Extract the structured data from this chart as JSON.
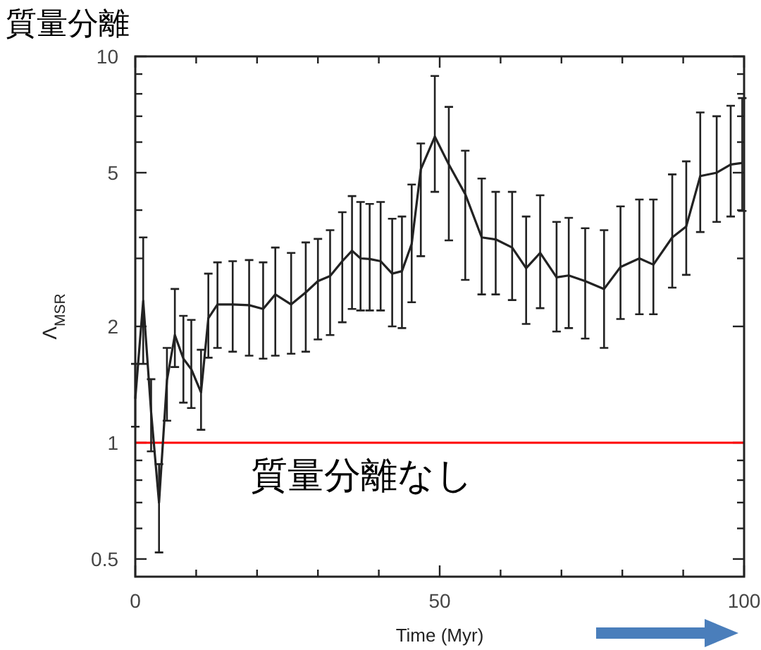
{
  "chart_data": {
    "type": "line",
    "title": "質量分離",
    "xlabel": "Time (Myr)",
    "ylabel": "Λ$_{MSR}$",
    "log": "y",
    "xlim": [
      0,
      100
    ],
    "xticks": [
      0,
      {
        "value": 10,
        "label": null
      },
      {
        "value": 20,
        "label": null
      },
      {
        "value": 30,
        "label": null
      },
      {
        "value": 40,
        "label": null
      },
      50,
      {
        "value": 60,
        "label": null
      },
      {
        "value": 70,
        "label": null
      },
      {
        "value": 80,
        "label": null
      },
      {
        "value": 90,
        "label": null
      },
      100
    ],
    "ylim": [
      0.45,
      10
    ],
    "yticks": [
      0.5,
      {
        "value": 0.6,
        "label": null
      },
      {
        "value": 0.7,
        "label": null
      },
      {
        "value": 0.8,
        "label": null
      },
      {
        "value": 0.9,
        "label": null
      },
      1,
      2,
      {
        "value": 3,
        "label": null
      },
      {
        "value": 4,
        "label": null
      },
      5,
      {
        "value": 6,
        "label": null
      },
      {
        "value": 7,
        "label": null
      },
      {
        "value": 8,
        "label": null
      },
      {
        "value": 9,
        "label": null
      },
      10
    ],
    "grid": false,
    "marker": "none",
    "line_style": "solid",
    "ref_lines": [
      {
        "axis": "y",
        "value": 1,
        "label": "質量分離なし",
        "color": "#ff0000"
      }
    ],
    "series": [
      {
        "color": "#222222",
        "x": [
          0,
          1.3,
          2.6,
          3.9,
          5.2,
          6.5,
          7.9,
          9.2,
          10.8,
          12,
          13.5,
          16,
          18.7,
          21,
          23,
          25.6,
          28,
          30,
          32,
          34,
          35.6,
          37,
          38.5,
          40.3,
          42.2,
          43.8,
          45.4,
          46.9,
          49.2,
          51.5,
          54.2,
          56.9,
          59.2,
          61.9,
          64.2,
          66.5,
          69.2,
          71.2,
          73.9,
          77,
          79.7,
          82.8,
          85.1,
          88.2,
          90.5,
          92.8,
          95.5,
          97.8,
          99.7
        ],
        "values": [
          1.3,
          2.33,
          1.2,
          0.7,
          1.45,
          1.9,
          1.65,
          1.55,
          1.35,
          2.1,
          2.28,
          2.28,
          2.27,
          2.22,
          2.42,
          2.28,
          2.45,
          2.62,
          2.7,
          2.95,
          3.14,
          3.0,
          2.99,
          2.95,
          2.74,
          2.78,
          3.27,
          5.1,
          6.2,
          5.25,
          4.4,
          3.4,
          3.36,
          3.2,
          2.83,
          3.1,
          2.68,
          2.71,
          2.62,
          2.5,
          2.85,
          3.0,
          2.89,
          3.4,
          3.63,
          4.9,
          5.0,
          5.25,
          5.3
        ],
        "errors": [
          [
            1.1,
            1.6
          ],
          [
            1.6,
            3.4
          ],
          [
            0.95,
            1.46
          ],
          [
            0.52,
            0.88
          ],
          [
            1.14,
            1.76
          ],
          [
            1.57,
            2.5
          ],
          [
            1.27,
            2.13
          ],
          [
            1.23,
            2.08
          ],
          [
            1.08,
            1.74
          ],
          [
            1.66,
            2.74
          ],
          [
            1.76,
            2.93
          ],
          [
            1.72,
            2.95
          ],
          [
            1.68,
            2.97
          ],
          [
            1.65,
            2.93
          ],
          [
            1.68,
            3.2
          ],
          [
            1.7,
            3.1
          ],
          [
            1.72,
            3.3
          ],
          [
            1.85,
            3.37
          ],
          [
            1.9,
            3.55
          ],
          [
            2.05,
            3.95
          ],
          [
            2.22,
            4.35
          ],
          [
            2.2,
            4.2
          ],
          [
            2.2,
            4.15
          ],
          [
            2.2,
            4.2
          ],
          [
            2.0,
            3.8
          ],
          [
            1.98,
            3.85
          ],
          [
            2.31,
            4.66
          ],
          [
            3.04,
            5.95
          ],
          [
            4.46,
            8.9
          ],
          [
            3.34,
            7.4
          ],
          [
            2.64,
            5.7
          ],
          [
            2.42,
            4.83
          ],
          [
            2.42,
            4.46
          ],
          [
            2.34,
            4.46
          ],
          [
            2.03,
            3.85
          ],
          [
            2.23,
            4.37
          ],
          [
            1.94,
            3.73
          ],
          [
            1.98,
            3.82
          ],
          [
            1.86,
            3.59
          ],
          [
            1.76,
            3.55
          ],
          [
            2.09,
            4.09
          ],
          [
            2.15,
            4.26
          ],
          [
            2.15,
            4.26
          ],
          [
            2.52,
            4.95
          ],
          [
            2.72,
            5.35
          ],
          [
            3.51,
            7.16
          ],
          [
            3.73,
            7.0
          ],
          [
            3.85,
            7.45
          ],
          [
            3.98,
            7.8
          ]
        ]
      }
    ]
  }
}
